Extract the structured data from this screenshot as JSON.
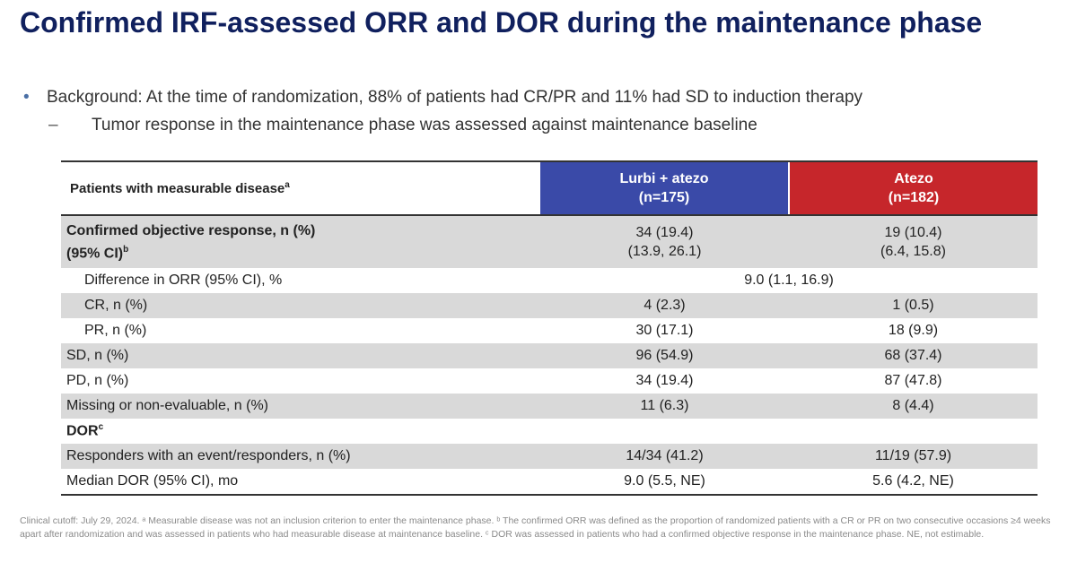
{
  "title": "Confirmed IRF-assessed ORR and DOR during the maintenance phase",
  "bullets": {
    "main": "Background: At the time of randomization, 88% of patients had CR/PR and 11% had SD to induction therapy",
    "sub": "Tumor response in the maintenance phase was assessed against maintenance baseline"
  },
  "table": {
    "header": {
      "label": "Patients with measurable disease",
      "label_sup": "a",
      "arm1_name": "Lurbi + atezo",
      "arm1_n": "(n=175)",
      "arm2_name": "Atezo",
      "arm2_n": "(n=182)"
    },
    "orr": {
      "label_line1": "Confirmed objective response, n (%)",
      "label_line2": "(95% CI)",
      "label_sup": "b",
      "arm1_line1": "34 (19.4)",
      "arm1_line2": "(13.9, 26.1)",
      "arm2_line1": "19 (10.4)",
      "arm2_line2": "(6.4, 15.8)"
    },
    "diff": {
      "label": "Difference in ORR (95% CI), %",
      "value": "9.0 (1.1, 16.9)"
    },
    "rows": [
      {
        "label": "CR, n (%)",
        "arm1": "4 (2.3)",
        "arm2": "1 (0.5)"
      },
      {
        "label": "PR, n (%)",
        "arm1": "30 (17.1)",
        "arm2": "18 (9.9)"
      },
      {
        "label": "SD, n (%)",
        "arm1": "96 (54.9)",
        "arm2": "68 (37.4)"
      },
      {
        "label": "PD, n (%)",
        "arm1": "34 (19.4)",
        "arm2": "87 (47.8)"
      },
      {
        "label": "Missing or non-evaluable, n (%)",
        "arm1": "11 (6.3)",
        "arm2": "8 (4.4)"
      }
    ],
    "dor": {
      "label": "DOR",
      "label_sup": "c",
      "rows": [
        {
          "label": "Responders with an event/responders, n (%)",
          "arm1": "14/34 (41.2)",
          "arm2": "11/19 (57.9)"
        },
        {
          "label": "Median DOR (95% CI), mo",
          "arm1": "9.0 (5.5, NE)",
          "arm2": "5.6 (4.2, NE)"
        }
      ]
    }
  },
  "footnote": "Clinical cutoff: July 29, 2024. ᵃ Measurable disease was not an inclusion criterion to enter the maintenance phase. ᵇ The confirmed ORR was defined as the proportion of randomized patients with a CR or PR on two consecutive occasions ≥4 weeks apart after randomization and was assessed in patients who had measurable disease at maintenance baseline. ᶜ DOR was assessed in patients who had a confirmed objective response in the maintenance phase. NE, not estimable."
}
